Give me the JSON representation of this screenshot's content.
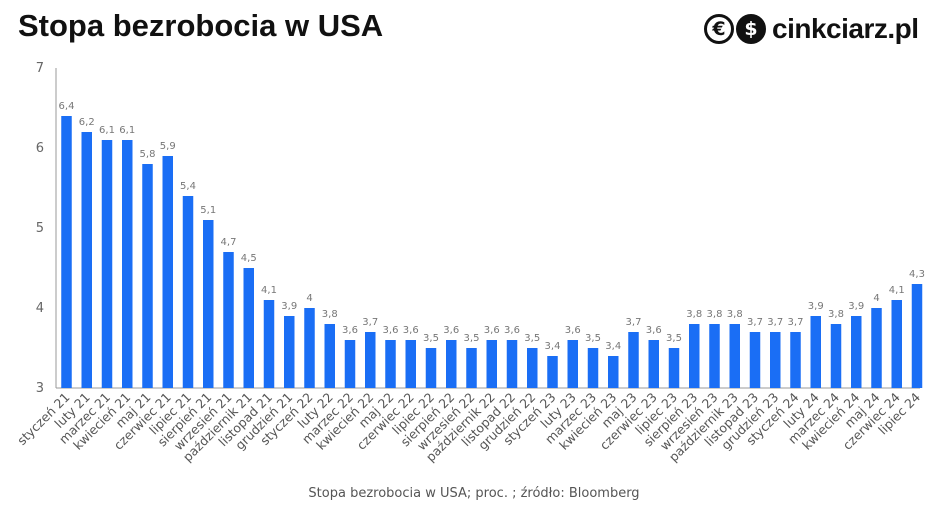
{
  "title": "Stopa bezrobocia w USA",
  "logo": {
    "text": "cinkciarz.pl",
    "euro_glyph": "€",
    "dollar_glyph": "$"
  },
  "source": "Stopa bezrobocia w USA; proc. ; źródło: Bloomberg",
  "colors": {
    "bar": "#1a6ef5",
    "axis": "#999999"
  },
  "chart_data": {
    "type": "bar",
    "title": "Stopa bezrobocia w USA",
    "ylim": [
      3,
      7
    ],
    "yticks": [
      "3",
      "4",
      "5",
      "6",
      "7"
    ],
    "categories": [
      "styczeń 21",
      "luty 21",
      "marzec 21",
      "kwiecień 21",
      "maj 21",
      "czerwiec 21",
      "lipiec 21",
      "sierpień 21",
      "wrzesień 21",
      "październik 21",
      "listopad 21",
      "grudzień 21",
      "styczeń 22",
      "luty 22",
      "marzec 22",
      "kwiecień 22",
      "maj 22",
      "czerwiec 22",
      "lipiec 22",
      "sierpień 22",
      "wrzesień 22",
      "październik 22",
      "listopad 22",
      "grudzień 22",
      "styczeń 23",
      "luty 23",
      "marzec 23",
      "kwiecień 23",
      "maj 23",
      "czerwiec 23",
      "lipiec 23",
      "sierpień 23",
      "wrzesień 23",
      "październik 23",
      "listopad 23",
      "grudzień 23",
      "styczeń 24",
      "luty 24",
      "marzec 24",
      "kwiecień 24",
      "maj 24",
      "czerwiec 24",
      "lipiec 24"
    ],
    "values": [
      6.4,
      6.2,
      6.1,
      6.1,
      5.8,
      5.9,
      5.4,
      5.1,
      4.7,
      4.5,
      4.1,
      3.9,
      4,
      3.8,
      3.6,
      3.7,
      3.6,
      3.6,
      3.5,
      3.6,
      3.5,
      3.6,
      3.6,
      3.5,
      3.4,
      3.6,
      3.5,
      3.4,
      3.7,
      3.6,
      3.5,
      3.8,
      3.8,
      3.8,
      3.7,
      3.7,
      3.7,
      3.9,
      3.8,
      3.9,
      4,
      4.1,
      4.3
    ],
    "value_labels": [
      "6,4",
      "6,2",
      "6,1",
      "6,1",
      "5,8",
      "5,9",
      "5,4",
      "5,1",
      "4,7",
      "4,5",
      "4,1",
      "3,9",
      "4",
      "3,8",
      "3,6",
      "3,7",
      "3,6",
      "3,6",
      "3,5",
      "3,6",
      "3,5",
      "3,6",
      "3,6",
      "3,5",
      "3,4",
      "3,6",
      "3,5",
      "3,4",
      "3,7",
      "3,6",
      "3,5",
      "3,8",
      "3,8",
      "3,8",
      "3,7",
      "3,7",
      "3,7",
      "3,9",
      "3,8",
      "3,9",
      "4",
      "4,1",
      "4,3"
    ],
    "grid": false,
    "legend": "none"
  }
}
